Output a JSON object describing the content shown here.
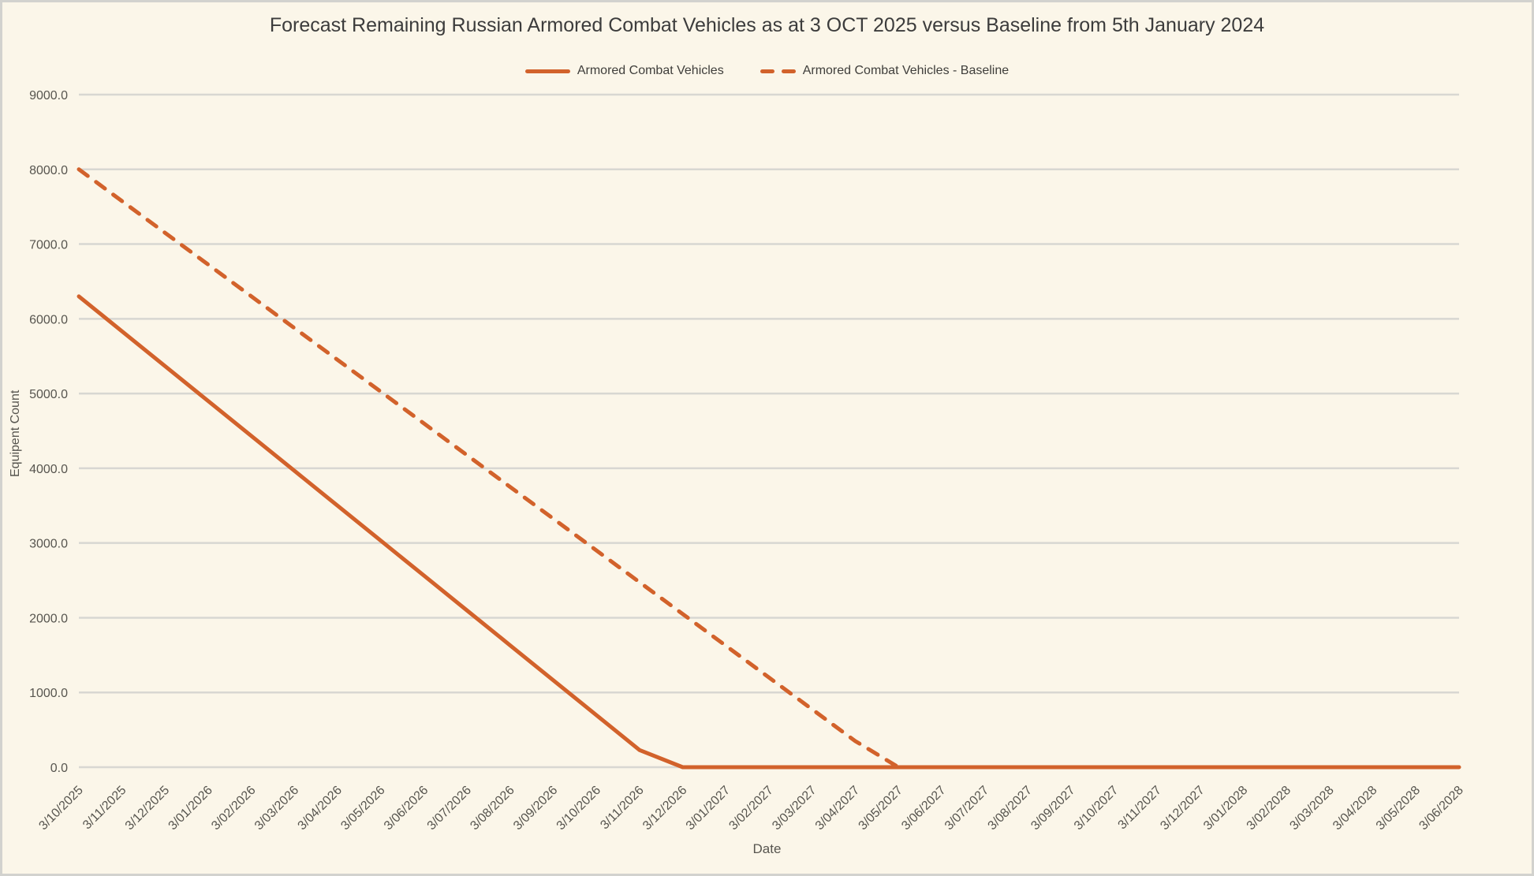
{
  "colors": {
    "background": "#FBF6E9",
    "frame_border": "#D2D2CE",
    "accent_orange": "#D2622B",
    "gridline": "#D8D7D2",
    "title_text": "#3C3C3C",
    "axis_text": "#57554F"
  },
  "chart_data": {
    "type": "line",
    "title": "Forecast Remaining Russian Armored Combat Vehicles as at 3 OCT 2025 versus Baseline from 5th January 2024",
    "xlabel": "Date",
    "ylabel": "Equipent Count",
    "ylim": [
      0,
      9000
    ],
    "ytick_step": 1000,
    "y_tick_labels": [
      "0.0",
      "1000.0",
      "2000.0",
      "3000.0",
      "4000.0",
      "5000.0",
      "6000.0",
      "7000.0",
      "8000.0",
      "9000.0"
    ],
    "grid": "horizontal-only",
    "legend_position": "top-center",
    "x_tick_rotation_deg": -45,
    "categories": [
      "3/10/2025",
      "3/11/2025",
      "3/12/2025",
      "3/01/2026",
      "3/02/2026",
      "3/03/2026",
      "3/04/2026",
      "3/05/2026",
      "3/06/2026",
      "3/07/2026",
      "3/08/2026",
      "3/09/2026",
      "3/10/2026",
      "3/11/2026",
      "3/12/2026",
      "3/01/2027",
      "3/02/2027",
      "3/03/2027",
      "3/04/2027",
      "3/05/2027",
      "3/06/2027",
      "3/07/2027",
      "3/08/2027",
      "3/09/2027",
      "3/10/2027",
      "3/11/2027",
      "3/12/2027",
      "3/01/2028",
      "3/02/2028",
      "3/03/2028",
      "3/04/2028",
      "3/05/2028",
      "3/06/2028"
    ],
    "series": [
      {
        "name": "Armored Combat Vehicles",
        "style": "solid",
        "color": "#D2622B",
        "values": [
          6300,
          5833,
          5366,
          4899,
          4432,
          3965,
          3498,
          3031,
          2564,
          2097,
          1630,
          1163,
          696,
          229,
          0,
          0,
          0,
          0,
          0,
          0,
          0,
          0,
          0,
          0,
          0,
          0,
          0,
          0,
          0,
          0,
          0,
          0,
          0
        ]
      },
      {
        "name": "Armored Combat Vehicles - Baseline",
        "style": "dashed",
        "color": "#D2622B",
        "values": [
          8000,
          7575,
          7150,
          6725,
          6300,
          5875,
          5450,
          5025,
          4600,
          4175,
          3750,
          3325,
          2900,
          2475,
          2050,
          1625,
          1200,
          775,
          350,
          0,
          0,
          0,
          0,
          0,
          0,
          0,
          0,
          0,
          0,
          0,
          0,
          0,
          0
        ]
      }
    ]
  }
}
